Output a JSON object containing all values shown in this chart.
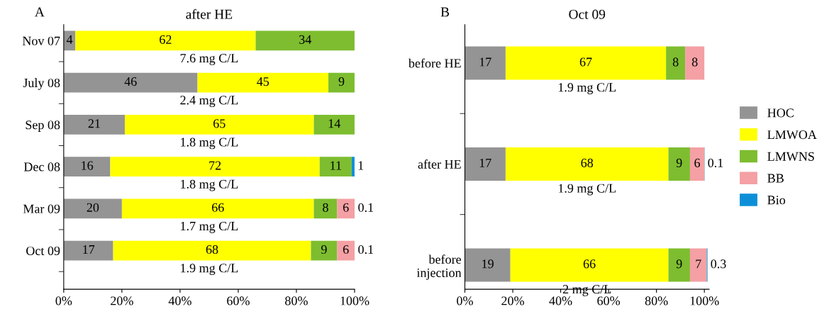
{
  "chart_data": [
    {
      "type": "bar",
      "orientation": "horizontal",
      "stacked": true,
      "title": "after HE",
      "annotations": [
        "A",
        "7.6 mg C/L",
        "2.4 mg C/L",
        "1.8 mg C/L",
        "1.8 mg C/L",
        "1.7 mg C/L",
        "1.9 mg C/L"
      ],
      "categories": [
        "Nov 07",
        "July 08",
        "Sep 08",
        "Dec 08",
        "Mar 09",
        "Oct 09"
      ],
      "series": [
        {
          "color": "#949494",
          "values": [
            4,
            46,
            21,
            16,
            20,
            17
          ]
        },
        {
          "color": "#ffff00",
          "values": [
            62,
            45,
            65,
            72,
            66,
            68
          ]
        },
        {
          "color": "#7dbd2f",
          "values": [
            34,
            9,
            14,
            11,
            8,
            9
          ]
        },
        {
          "color": "#f4a0a4",
          "values": [
            null,
            null,
            null,
            null,
            6,
            6
          ]
        },
        {
          "color": "#0d8fd8",
          "values": [
            null,
            null,
            null,
            1,
            0.1,
            0.1
          ]
        }
      ],
      "xlim": [
        0,
        100
      ],
      "xticks": [
        {
          "value": 0,
          "label": "0%"
        },
        {
          "value": 20,
          "label": "20%"
        },
        {
          "value": 40,
          "label": "40%"
        },
        {
          "value": 60,
          "label": "60%"
        },
        {
          "value": 80,
          "label": "80%"
        },
        {
          "value": 100,
          "label": "100%"
        }
      ],
      "data_labels": true,
      "grid": false,
      "legend": false
    },
    {
      "type": "bar",
      "orientation": "horizontal",
      "stacked": true,
      "title": "Oct 09",
      "annotations": [
        "B",
        "1.9 mg C/L",
        "1.9 mg C/L",
        "2 mg C/L"
      ],
      "categories": [
        "before HE",
        "after HE",
        "before\ninjection"
      ],
      "series": [
        {
          "name": "HOC",
          "color": "#949494",
          "values": [
            17,
            17,
            19
          ]
        },
        {
          "name": "LMWOA",
          "color": "#ffff00",
          "values": [
            67,
            68,
            66
          ]
        },
        {
          "name": "LMWNS",
          "color": "#7dbd2f",
          "values": [
            8,
            9,
            9
          ]
        },
        {
          "name": "BB",
          "color": "#f4a0a4",
          "values": [
            8,
            6,
            7
          ]
        },
        {
          "name": "Bio",
          "color": "#0d8fd8",
          "values": [
            null,
            0.1,
            0.3
          ]
        }
      ],
      "xlim": [
        0,
        102
      ],
      "xticks": [
        {
          "value": 0,
          "label": "0%"
        },
        {
          "value": 20,
          "label": "20%"
        },
        {
          "value": 40,
          "label": "40%"
        },
        {
          "value": 60,
          "label": "60%"
        },
        {
          "value": 80,
          "label": "80%"
        },
        {
          "value": 100,
          "label": "100%"
        }
      ],
      "data_labels": true,
      "grid": false,
      "legend": "right"
    }
  ]
}
